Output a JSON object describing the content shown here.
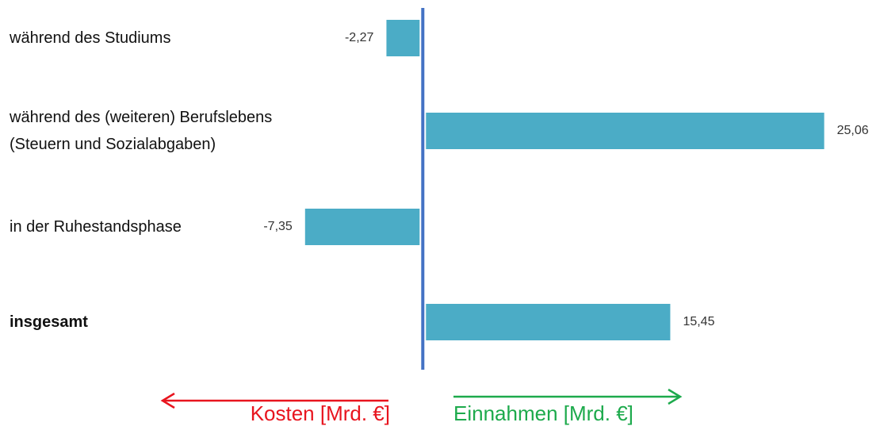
{
  "chart_data": {
    "type": "hbar",
    "categories": [
      "während des Studiums",
      "während des (weiteren) Berufslebens\n(Steuern und Sozialabgaben)",
      "in der Ruhestandsphase",
      "insgesamt"
    ],
    "bold": [
      false,
      false,
      false,
      true
    ],
    "values": [
      -2.27,
      25.06,
      -7.35,
      15.45
    ],
    "value_labels": [
      "-2,27",
      "25,06",
      "-7,35",
      "15,45"
    ],
    "color": "#4bacc6",
    "axis_color": "#4472c4",
    "xlim": [
      -26,
      28
    ],
    "axis_labels": {
      "negative": {
        "text": "Kosten [Mrd. €]",
        "color": "#e8141e"
      },
      "positive": {
        "text": "Einnahmen [Mrd. €]",
        "color": "#1daa4c"
      }
    }
  }
}
